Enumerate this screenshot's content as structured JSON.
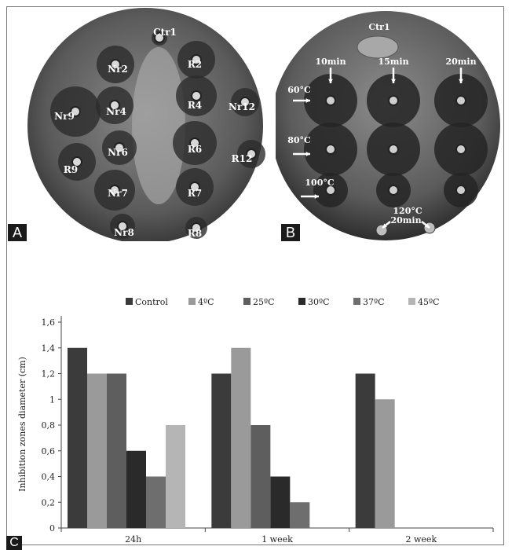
{
  "panel_labels": {
    "a": "A",
    "b": "B",
    "c": "C"
  },
  "plate_a": {
    "labels": [
      "Ctr1",
      "Nr2",
      "R2",
      "Nr4",
      "R4",
      "Nr12",
      "Nr9",
      "Nr6",
      "R6",
      "R9",
      "R12",
      "Nr7",
      "R7",
      "Nr8",
      "R8"
    ]
  },
  "plate_b": {
    "labels": [
      "Ctr1",
      "10min",
      "15min",
      "20min",
      "60°C",
      "80°C",
      "100°C",
      "120°C",
      "20min"
    ]
  },
  "chart_data": {
    "type": "bar",
    "categories": [
      "24h",
      "1 week",
      "2 week"
    ],
    "series": [
      {
        "name": "Control",
        "values": [
          1.4,
          1.2,
          1.2
        ],
        "color": "#3b3b3b"
      },
      {
        "name": "4ºC",
        "values": [
          1.2,
          1.4,
          1.0
        ],
        "color": "#9a9a9a"
      },
      {
        "name": "25ºC",
        "values": [
          1.2,
          0.8,
          0
        ],
        "color": "#5e5e5e"
      },
      {
        "name": "30ºC",
        "values": [
          0.6,
          0.4,
          0
        ],
        "color": "#2a2a2a"
      },
      {
        "name": "37ºC",
        "values": [
          0.4,
          0.2,
          0
        ],
        "color": "#6e6e6e"
      },
      {
        "name": "45ºC",
        "values": [
          0.8,
          0,
          0
        ],
        "color": "#b5b5b5"
      }
    ],
    "ylabel": "Inhibition zones diameter (cm)",
    "xlabel": "",
    "yticks": [
      "0",
      "0,2",
      "0,4",
      "0,6",
      "0,8",
      "1",
      "1,2",
      "1,4",
      "1,6"
    ],
    "ylim": [
      0,
      1.6
    ],
    "legend": "top"
  }
}
